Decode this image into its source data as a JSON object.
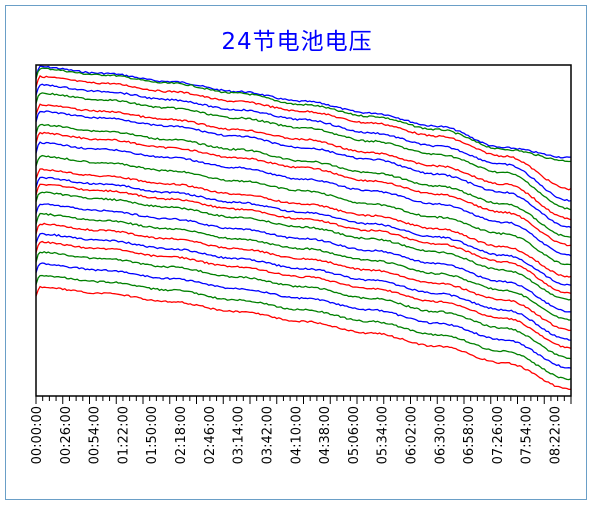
{
  "chart_data": {
    "type": "line",
    "title": "24节电池电压",
    "xlabel": "",
    "ylabel": "",
    "grid": false,
    "legend": "none",
    "x_tick_labels": [
      "00:00:00",
      "00:26:00",
      "00:54:00",
      "01:22:00",
      "01:50:00",
      "02:18:00",
      "02:46:00",
      "03:14:00",
      "03:42:00",
      "04:10:00",
      "04:38:00",
      "05:06:00",
      "05:34:00",
      "06:02:00",
      "06:30:00",
      "06:58:00",
      "07:26:00",
      "07:54:00",
      "08:22:00"
    ],
    "x_duration_minutes": 520,
    "ylim": [
      0,
      100
    ],
    "series_colors": [
      "#0000ff",
      "#008000",
      "#ff0000"
    ],
    "series": [
      {
        "color": "#0000ff",
        "values": [
          99.5,
          97.5,
          95.0,
          92.0,
          89.0,
          85.5,
          81.5,
          75.0,
          72.0
        ]
      },
      {
        "color": "#008000",
        "values": [
          99.0,
          97.0,
          94.5,
          91.5,
          88.0,
          84.5,
          80.5,
          74.5,
          71.0
        ]
      },
      {
        "color": "#ff0000",
        "values": [
          96.5,
          94.5,
          92.0,
          89.0,
          86.0,
          82.5,
          78.5,
          72.5,
          62.5
        ]
      },
      {
        "color": "#0000ff",
        "values": [
          94.0,
          92.0,
          89.5,
          86.5,
          83.5,
          79.5,
          75.5,
          70.0,
          59.0
        ]
      },
      {
        "color": "#008000",
        "values": [
          91.5,
          89.5,
          87.0,
          84.0,
          81.0,
          77.0,
          73.0,
          67.5,
          56.5
        ]
      },
      {
        "color": "#ff0000",
        "values": [
          88.0,
          86.0,
          83.5,
          80.5,
          77.5,
          73.5,
          69.5,
          64.0,
          53.5
        ]
      },
      {
        "color": "#0000ff",
        "values": [
          86.0,
          84.0,
          81.5,
          78.5,
          75.0,
          71.5,
          67.0,
          61.5,
          51.0
        ]
      },
      {
        "color": "#008000",
        "values": [
          82.0,
          80.0,
          77.5,
          74.5,
          71.0,
          67.5,
          63.5,
          58.0,
          48.0
        ]
      },
      {
        "color": "#ff0000",
        "values": [
          79.5,
          77.5,
          75.0,
          72.0,
          69.0,
          65.0,
          61.0,
          55.5,
          45.5
        ]
      },
      {
        "color": "#0000ff",
        "values": [
          76.5,
          74.5,
          72.0,
          69.0,
          65.5,
          62.0,
          58.0,
          52.5,
          42.5
        ]
      },
      {
        "color": "#008000",
        "values": [
          72.5,
          70.5,
          68.0,
          65.0,
          62.0,
          58.0,
          54.0,
          49.0,
          39.5
        ]
      },
      {
        "color": "#ff0000",
        "values": [
          68.5,
          66.5,
          64.0,
          61.0,
          58.0,
          54.5,
          50.5,
          45.0,
          36.0
        ]
      },
      {
        "color": "#0000ff",
        "values": [
          66.0,
          64.0,
          61.5,
          58.5,
          55.5,
          52.0,
          48.0,
          42.5,
          33.5
        ]
      },
      {
        "color": "#ff0000",
        "values": [
          64.0,
          62.0,
          59.5,
          56.5,
          53.5,
          50.0,
          46.0,
          40.5,
          31.0
        ]
      },
      {
        "color": "#008000",
        "values": [
          61.5,
          59.5,
          57.0,
          54.0,
          51.0,
          47.5,
          43.5,
          38.0,
          29.0
        ]
      },
      {
        "color": "#0000ff",
        "values": [
          58.0,
          56.0,
          53.5,
          50.5,
          47.5,
          44.0,
          40.0,
          34.5,
          25.5
        ]
      },
      {
        "color": "#008000",
        "values": [
          55.0,
          53.0,
          50.5,
          47.5,
          44.5,
          41.0,
          37.0,
          32.0,
          23.0
        ]
      },
      {
        "color": "#ff0000",
        "values": [
          52.0,
          50.0,
          47.5,
          44.5,
          41.5,
          38.0,
          34.0,
          29.0,
          20.0
        ]
      },
      {
        "color": "#0000ff",
        "values": [
          49.0,
          47.0,
          44.5,
          41.5,
          38.5,
          35.0,
          31.0,
          26.0,
          17.0
        ]
      },
      {
        "color": "#ff0000",
        "values": [
          46.5,
          44.5,
          42.0,
          39.0,
          36.0,
          32.5,
          28.5,
          23.5,
          14.5
        ]
      },
      {
        "color": "#008000",
        "values": [
          43.5,
          41.5,
          39.0,
          36.0,
          33.0,
          29.5,
          25.5,
          20.5,
          11.5
        ]
      },
      {
        "color": "#0000ff",
        "values": [
          40.0,
          38.0,
          35.5,
          32.5,
          29.5,
          26.0,
          22.0,
          17.0,
          8.5
        ]
      },
      {
        "color": "#008000",
        "values": [
          36.5,
          34.5,
          32.0,
          29.0,
          26.0,
          22.5,
          18.5,
          13.5,
          5.0
        ]
      },
      {
        "color": "#ff0000",
        "values": [
          33.0,
          31.0,
          28.5,
          25.5,
          22.5,
          19.0,
          15.0,
          10.0,
          2.0
        ]
      }
    ]
  }
}
